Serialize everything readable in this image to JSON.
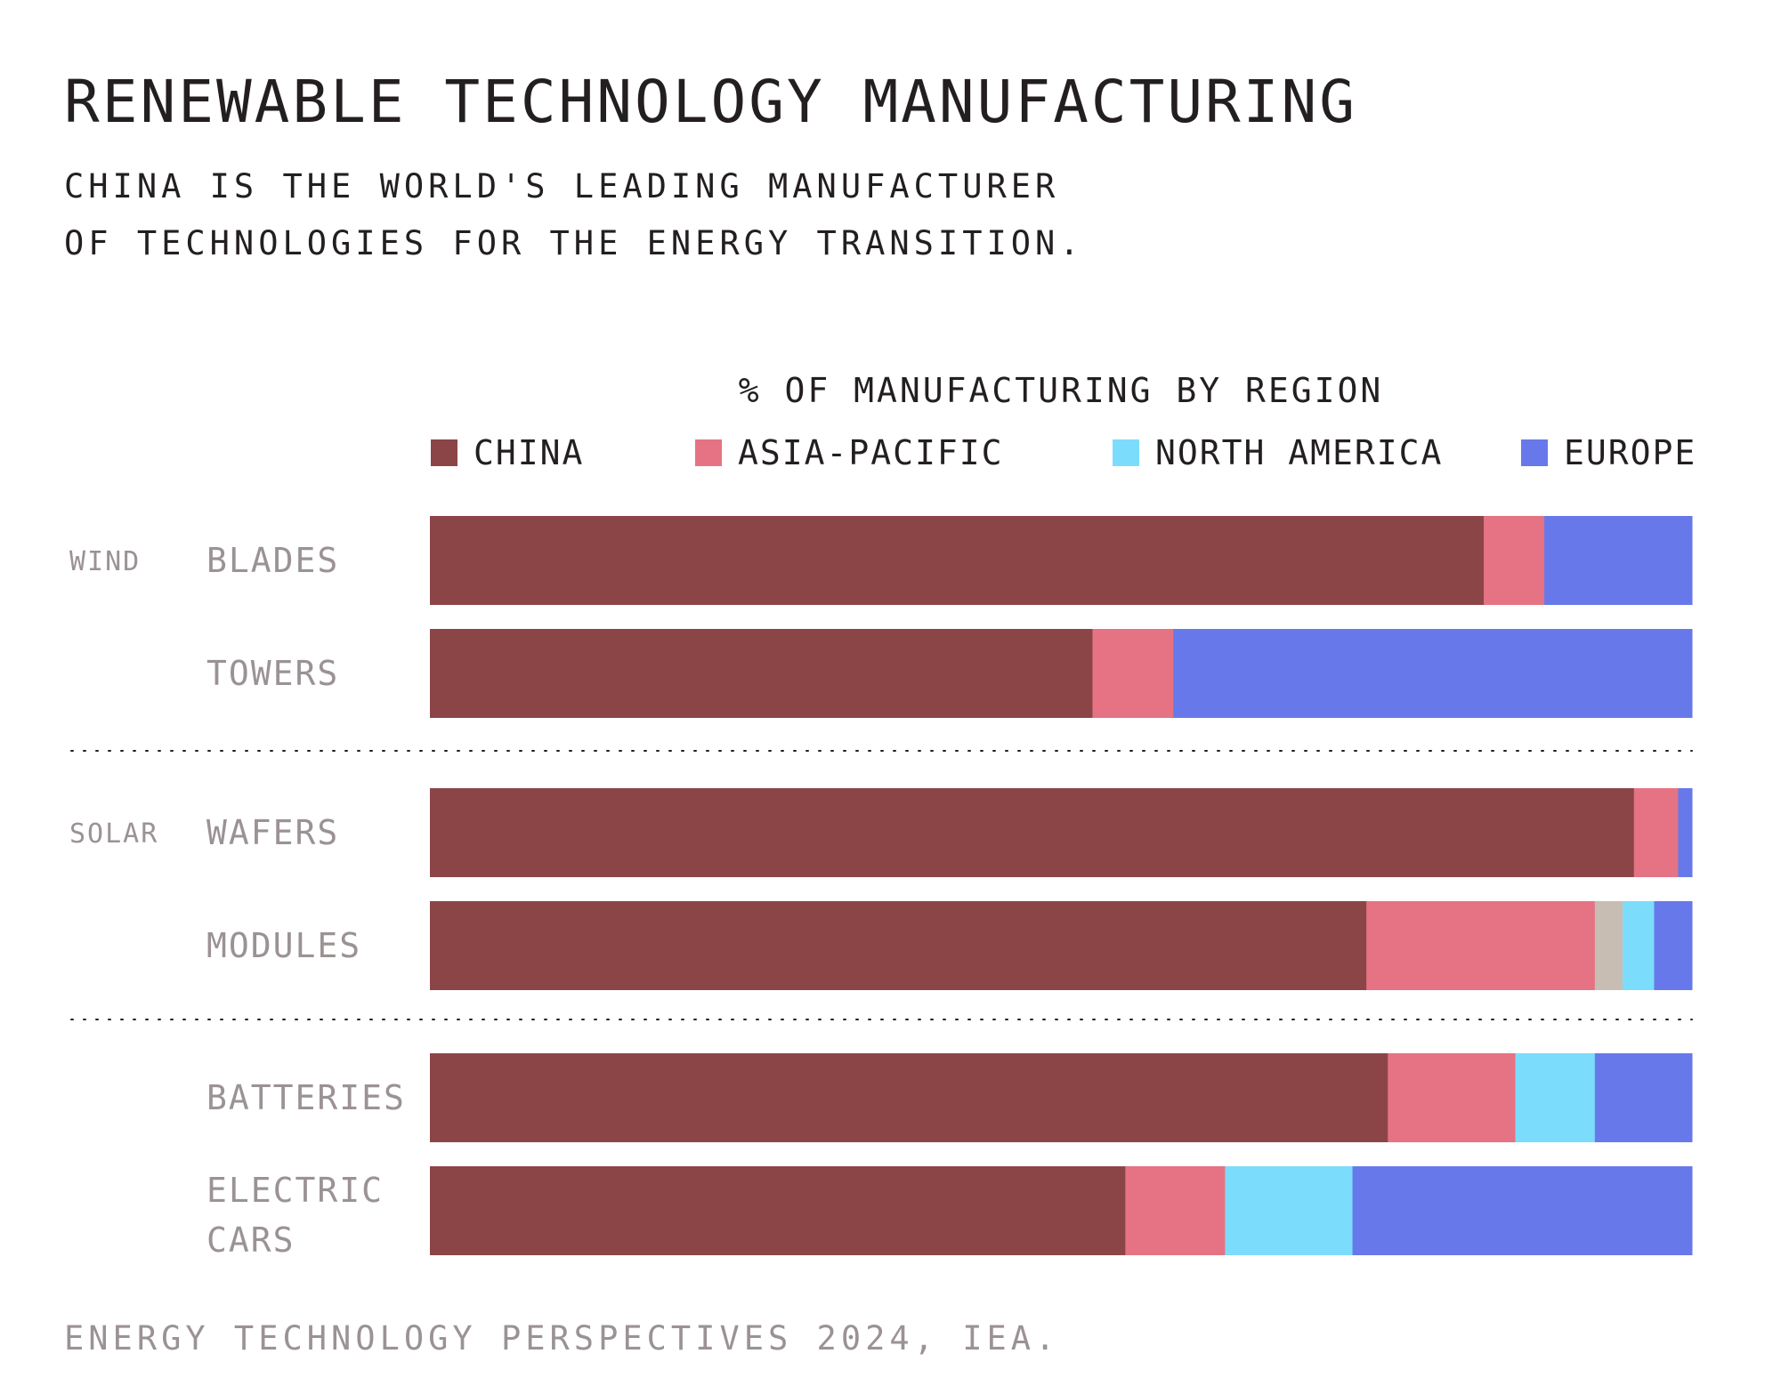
{
  "title": "RENEWABLE TECHNOLOGY MANUFACTURING",
  "subtitle_lines": [
    "CHINA IS THE WORLD'S LEADING MANUFACTURER",
    "OF TECHNOLOGIES FOR THE ENERGY TRANSITION."
  ],
  "source": "ENERGY TECHNOLOGY PERSPECTIVES 2024, IEA.",
  "chart_data": {
    "type": "bar",
    "orientation": "horizontal",
    "stacked": true,
    "title": "% OF MANUFACTURING BY REGION",
    "xlim": [
      0,
      100
    ],
    "legend_position": "top",
    "groups": [
      {
        "label": "WIND",
        "categories": [
          "BLADES",
          "TOWERS"
        ]
      },
      {
        "label": "SOLAR",
        "categories": [
          "WAFERS",
          "MODULES"
        ]
      },
      {
        "label": "",
        "categories": [
          "BATTERIES",
          "ELECTRIC CARS"
        ]
      }
    ],
    "categories": [
      "BLADES",
      "TOWERS",
      "WAFERS",
      "MODULES",
      "BATTERIES",
      "ELECTRIC CARS"
    ],
    "series": [
      {
        "name": "CHINA",
        "color": "#8c4547",
        "values": [
          83.5,
          52.5,
          95.4,
          74.2,
          75.9,
          55.1
        ]
      },
      {
        "name": "ASIA-PACIFIC",
        "color": "#e57383",
        "values": [
          4.8,
          6.4,
          3.5,
          18.1,
          10.1,
          7.9
        ]
      },
      {
        "name": "",
        "color": "#c8bdb2",
        "values": [
          0,
          0,
          0,
          2.2,
          0,
          0
        ]
      },
      {
        "name": "NORTH AMERICA",
        "color": "#7cdcfb",
        "values": [
          0,
          0,
          0,
          2.5,
          6.3,
          10.1
        ]
      },
      {
        "name": "EUROPE",
        "color": "#6779ea",
        "values": [
          11.7,
          41.1,
          1.1,
          3.0,
          7.7,
          26.9
        ]
      }
    ],
    "colors": {
      "category_label": "#9b9294",
      "group_label": "#9b9294",
      "separator": "#231f20"
    }
  }
}
